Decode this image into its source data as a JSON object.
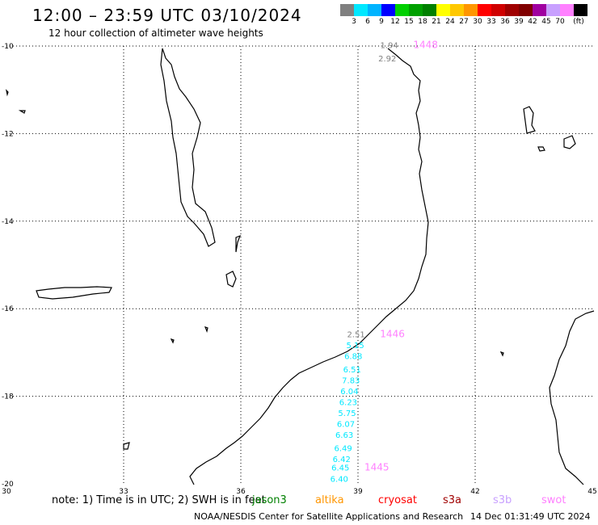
{
  "header": {
    "title": "12:00 – 23:59 UTC 03/10/2024",
    "subtitle": "12 hour collection of altimeter wave heights"
  },
  "legend": {
    "colors": [
      "#808080",
      "#00e8ff",
      "#00b4ff",
      "#0000ff",
      "#00d000",
      "#00a000",
      "#008000",
      "#ffff00",
      "#ffc800",
      "#ff9600",
      "#ff0000",
      "#d00000",
      "#a00000",
      "#800000",
      "#a000a0",
      "#c8a0ff",
      "#ff80ff",
      "#000000"
    ],
    "labels": [
      "3",
      "6",
      "9",
      "12",
      "15",
      "18",
      "21",
      "24",
      "27",
      "30",
      "33",
      "36",
      "39",
      "42",
      "45",
      "70",
      "(ft)"
    ]
  },
  "axes": {
    "lon_labels": [
      "30",
      "33",
      "36",
      "39",
      "42",
      "45"
    ],
    "lat_labels": [
      "-10",
      "-12",
      "-14",
      "-16",
      "-18",
      "-20"
    ]
  },
  "tracks": [
    {
      "time": "1448",
      "time_color": "#ff80ff",
      "points": [
        {
          "lon": 39.8,
          "lat": -10.05,
          "swh": "1.94",
          "color": "#808080"
        },
        {
          "lon": 39.75,
          "lat": -10.35,
          "swh": "2.92",
          "color": "#808080"
        }
      ]
    },
    {
      "time": "1446",
      "time_color": "#ff80ff",
      "points": [
        {
          "lon": 38.95,
          "lat": -16.65,
          "swh": "2.51",
          "color": "#808080"
        },
        {
          "lon": 38.93,
          "lat": -16.9,
          "swh": "5.15",
          "color": "#00e8ff"
        },
        {
          "lon": 38.88,
          "lat": -17.15,
          "swh": "6.88",
          "color": "#00e8ff"
        },
        {
          "lon": 38.85,
          "lat": -17.45,
          "swh": "6.51",
          "color": "#00e8ff"
        },
        {
          "lon": 38.82,
          "lat": -17.7,
          "swh": "7.83",
          "color": "#00e8ff"
        },
        {
          "lon": 38.78,
          "lat": -17.95,
          "swh": "6.04",
          "color": "#00e8ff"
        },
        {
          "lon": 38.75,
          "lat": -18.2,
          "swh": "6.23",
          "color": "#00e8ff"
        }
      ]
    },
    {
      "time": "1445",
      "time_color": "#ff80ff",
      "points": [
        {
          "lon": 38.72,
          "lat": -18.45,
          "swh": "5.75",
          "color": "#00e8ff"
        },
        {
          "lon": 38.69,
          "lat": -18.7,
          "swh": "6.07",
          "color": "#00e8ff"
        },
        {
          "lon": 38.65,
          "lat": -18.95,
          "swh": "6.63",
          "color": "#00e8ff"
        },
        {
          "lon": 38.62,
          "lat": -19.25,
          "swh": "6.49",
          "color": "#00e8ff"
        },
        {
          "lon": 38.58,
          "lat": -19.5,
          "swh": "6.42",
          "color": "#00e8ff"
        },
        {
          "lon": 38.55,
          "lat": -19.7,
          "swh": "6.45",
          "color": "#00e8ff"
        },
        {
          "lon": 38.52,
          "lat": -19.95,
          "swh": "6.40",
          "color": "#00e8ff"
        }
      ]
    }
  ],
  "footer": {
    "note": "note:  1) Time is in UTC;  2) SWH is in feet",
    "satellites": [
      {
        "name": "jason3",
        "color": "#008000"
      },
      {
        "name": "altika",
        "color": "#ff9600"
      },
      {
        "name": "cryosat",
        "color": "#ff0000"
      },
      {
        "name": "s3a",
        "color": "#a00000"
      },
      {
        "name": "s3b",
        "color": "#c8a0ff"
      },
      {
        "name": "swot",
        "color": "#ff80ff"
      }
    ],
    "credit": "NOAA/NESDIS Center for Satellite Applications and Research",
    "timestamp": "14 Dec 01:31:49 UTC 2024"
  }
}
